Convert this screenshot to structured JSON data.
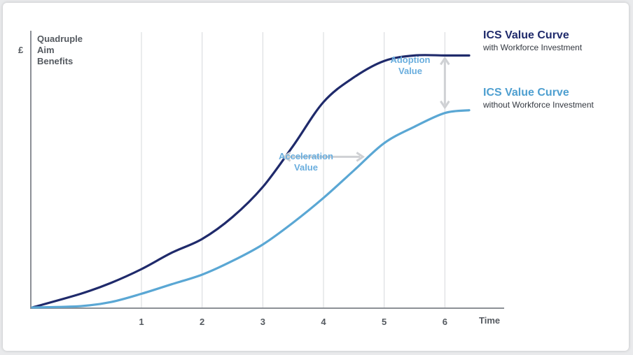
{
  "chart_data": {
    "type": "line",
    "y_axis_symbol": "£",
    "ylabel": [
      "Quadruple",
      "Aim",
      "Benefits"
    ],
    "xlabel": "Time",
    "x_ticks": [
      1,
      2,
      3,
      4,
      5,
      6
    ],
    "xlim": [
      -0.8,
      6.4
    ],
    "ylim": [
      0,
      100
    ],
    "grid": true,
    "series": [
      {
        "name": "ICS Value Curve",
        "subtitle": "with Workforce Investment",
        "color": "#1f2a6b",
        "x": [
          -0.8,
          0.0,
          0.5,
          1.0,
          1.5,
          2.0,
          2.5,
          3.0,
          3.5,
          4.0,
          4.5,
          5.0,
          5.5,
          6.0,
          6.4
        ],
        "y": [
          0,
          5,
          9,
          14,
          20,
          25,
          33,
          44,
          59,
          75,
          84,
          90,
          92,
          92,
          92
        ]
      },
      {
        "name": "ICS Value Curve",
        "subtitle": "without Workforce Investment",
        "color": "#5aa7d4",
        "x": [
          -0.8,
          0.0,
          0.5,
          1.0,
          1.5,
          2.0,
          2.5,
          3.0,
          3.5,
          4.0,
          4.5,
          5.0,
          5.5,
          6.0,
          6.4
        ],
        "y": [
          0,
          0.5,
          2,
          5,
          8.5,
          12,
          17,
          23,
          31,
          40,
          50,
          60,
          66,
          71,
          72
        ]
      }
    ],
    "annotations": [
      {
        "id": "adoption",
        "lines": [
          "Adoption",
          "Value"
        ],
        "color": "#6aaede",
        "arrow_x": 6.0,
        "arrow_y": [
          72,
          92
        ]
      },
      {
        "id": "acceleration",
        "lines": [
          "Acceleration",
          "Value"
        ],
        "color": "#6aaede",
        "arrow_x": [
          3.35,
          4.65
        ],
        "arrow_y": 55
      }
    ]
  }
}
